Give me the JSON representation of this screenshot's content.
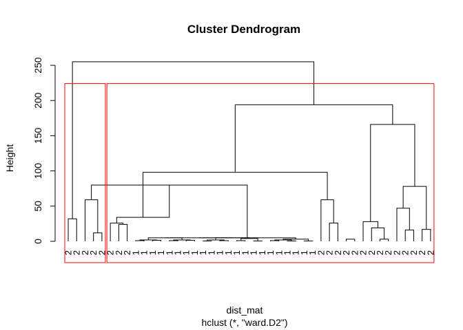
{
  "chart_data": {
    "type": "dendrogram",
    "title": "Cluster Dendrogram",
    "ylabel": "Height",
    "xlabel": "dist_mat",
    "sublabel": "hclust (*, \"ward.D2\")",
    "ylim": [
      0,
      265
    ],
    "y_ticks": [
      0,
      50,
      100,
      150,
      200,
      250
    ],
    "leaves": [
      "2",
      "2",
      "2",
      "2",
      "2",
      "2",
      "2",
      "2",
      "1",
      "1",
      "1",
      "1",
      "1",
      "1",
      "1",
      "1",
      "1",
      "1",
      "1",
      "1",
      "1",
      "1",
      "1",
      "1",
      "1",
      "1",
      "1",
      "1",
      "1",
      "1",
      "2",
      "2",
      "2",
      "2",
      "2",
      "2",
      "2",
      "2",
      "2",
      "2",
      "2",
      "2",
      "2",
      "2"
    ],
    "merges": [
      [
        1,
        2,
        32
      ],
      [
        4,
        5,
        12
      ],
      [
        3,
        "m2",
        59
      ],
      [
        7,
        8,
        24
      ],
      [
        9,
        10,
        1
      ],
      [
        11,
        12,
        1.5
      ],
      [
        "m5",
        "m6",
        2
      ],
      [
        13,
        14,
        1
      ],
      [
        15,
        16,
        1.5
      ],
      [
        "m8",
        "m9",
        2
      ],
      [
        "m7",
        "m10",
        5
      ],
      [
        17,
        18,
        0.5
      ],
      [
        19,
        20,
        1
      ],
      [
        "m12",
        "m13",
        2
      ],
      [
        21,
        22,
        1
      ],
      [
        23,
        24,
        0.5
      ],
      [
        "m15",
        "m16",
        4
      ],
      [
        "m14",
        "m17",
        5
      ],
      [
        "m11",
        "m18",
        5
      ],
      [
        25,
        26,
        1
      ],
      [
        27,
        28,
        0.5
      ],
      [
        "m20",
        "m21",
        2
      ],
      [
        29,
        30,
        0.5
      ],
      [
        "m22",
        "m23",
        3
      ],
      [
        "m19",
        "m24",
        5
      ],
      [
        "m3",
        "m25",
        80
      ],
      [
        6,
        "m4",
        26
      ],
      [
        "m27",
        "m26",
        34
      ],
      [
        32,
        33,
        26
      ],
      [
        31,
        "m29",
        59
      ],
      [
        "m28",
        "m30",
        98
      ],
      [
        34,
        35,
        3
      ],
      [
        38,
        39,
        3
      ],
      [
        37,
        "m33",
        19
      ],
      [
        36,
        "m34",
        28
      ],
      [
        41,
        42,
        16
      ],
      [
        40,
        "m36",
        47
      ],
      [
        43,
        44,
        17
      ],
      [
        "m37",
        "m38",
        78
      ],
      [
        "m35",
        "m39",
        166
      ],
      [
        "m31",
        "m40",
        194
      ],
      [
        "m1",
        "m41",
        255
      ]
    ],
    "cluster_boxes": [
      {
        "from_leaf": 1,
        "to_leaf": 5,
        "height": 224,
        "color": "#ff0000"
      },
      {
        "from_leaf": 6,
        "to_leaf": 44,
        "height": 224,
        "color": "#ff0000"
      }
    ],
    "grid": false,
    "legend": "none"
  }
}
